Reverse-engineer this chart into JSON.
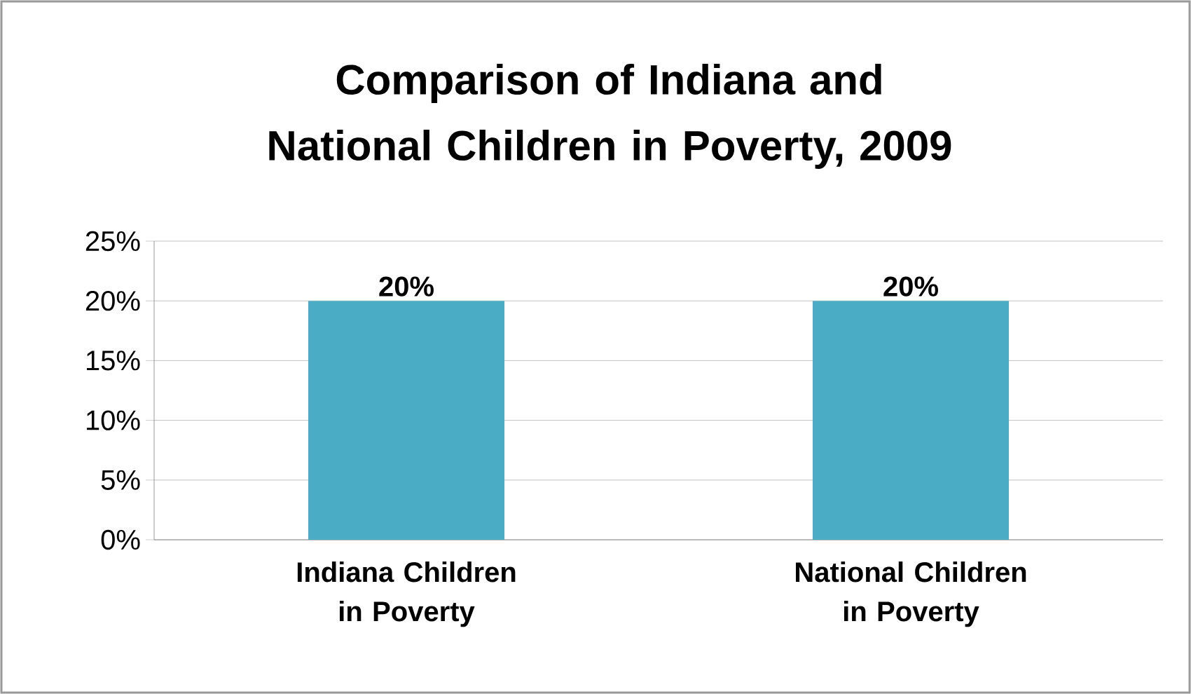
{
  "chart_data": {
    "type": "bar",
    "title": "Comparison of Indiana and National Children in Poverty, 2009",
    "categories": [
      "Indiana Children in Poverty",
      "National Children in Poverty"
    ],
    "values": [
      20,
      20
    ],
    "value_labels": [
      "20%",
      "20%"
    ],
    "color": "#4bacc6",
    "ylim": [
      0,
      25
    ],
    "yticks": [
      {
        "value": 0,
        "label": "0%"
      },
      {
        "value": 5,
        "label": "5%"
      },
      {
        "value": 10,
        "label": "10%"
      },
      {
        "value": 15,
        "label": "15%"
      },
      {
        "value": 20,
        "label": "20%"
      },
      {
        "value": 25,
        "label": "25%"
      }
    ],
    "grid": "y"
  }
}
